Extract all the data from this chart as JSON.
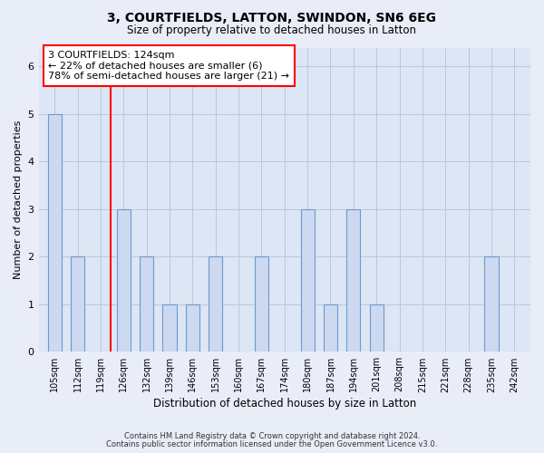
{
  "title1": "3, COURTFIELDS, LATTON, SWINDON, SN6 6EG",
  "title2": "Size of property relative to detached houses in Latton",
  "xlabel": "Distribution of detached houses by size in Latton",
  "ylabel": "Number of detached properties",
  "categories": [
    "105sqm",
    "112sqm",
    "119sqm",
    "126sqm",
    "132sqm",
    "139sqm",
    "146sqm",
    "153sqm",
    "160sqm",
    "167sqm",
    "174sqm",
    "180sqm",
    "187sqm",
    "194sqm",
    "201sqm",
    "208sqm",
    "215sqm",
    "221sqm",
    "228sqm",
    "235sqm",
    "242sqm"
  ],
  "values": [
    5,
    2,
    0,
    3,
    2,
    1,
    1,
    2,
    0,
    2,
    0,
    3,
    1,
    3,
    1,
    0,
    0,
    0,
    0,
    2,
    0
  ],
  "bar_color": "#ccd9f0",
  "bar_edge_color": "#7099cc",
  "annotation_text": "3 COURTFIELDS: 124sqm\n← 22% of detached houses are smaller (6)\n78% of semi-detached houses are larger (21) →",
  "ylim": [
    0,
    6.4
  ],
  "yticks": [
    0,
    1,
    2,
    3,
    4,
    5,
    6
  ],
  "footer1": "Contains HM Land Registry data © Crown copyright and database right 2024.",
  "footer2": "Contains public sector information licensed under the Open Government Licence v3.0.",
  "bg_color": "#e8edf8",
  "plot_bg_color": "#dce6f5",
  "grid_color": "#b8c8e0"
}
